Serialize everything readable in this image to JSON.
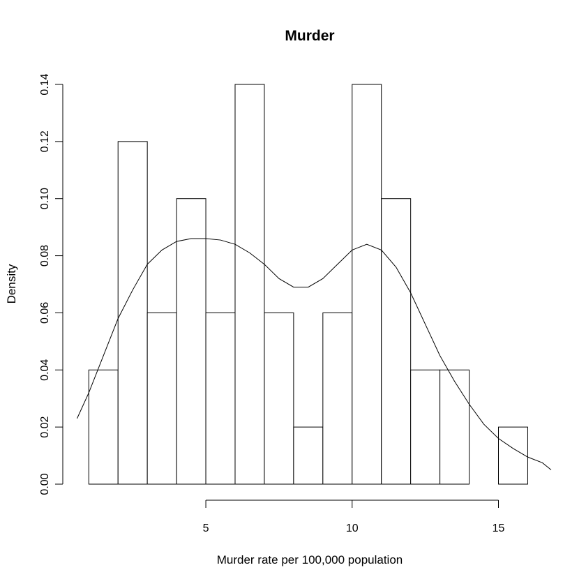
{
  "chart_data": {
    "type": "histogram",
    "title": "Murder",
    "xlabel": "Murder rate per 100,000 population",
    "ylabel": "Density",
    "bins": [
      {
        "x0": 1,
        "x1": 2,
        "density": 0.04
      },
      {
        "x0": 2,
        "x1": 3,
        "density": 0.12
      },
      {
        "x0": 3,
        "x1": 4,
        "density": 0.06
      },
      {
        "x0": 4,
        "x1": 5,
        "density": 0.1
      },
      {
        "x0": 5,
        "x1": 6,
        "density": 0.06
      },
      {
        "x0": 6,
        "x1": 7,
        "density": 0.14
      },
      {
        "x0": 7,
        "x1": 8,
        "density": 0.06
      },
      {
        "x0": 8,
        "x1": 9,
        "density": 0.02
      },
      {
        "x0": 9,
        "x1": 10,
        "density": 0.06
      },
      {
        "x0": 10,
        "x1": 11,
        "density": 0.14
      },
      {
        "x0": 11,
        "x1": 12,
        "density": 0.1
      },
      {
        "x0": 12,
        "x1": 13,
        "density": 0.04
      },
      {
        "x0": 13,
        "x1": 14,
        "density": 0.04
      },
      {
        "x0": 14,
        "x1": 15,
        "density": 0
      },
      {
        "x0": 15,
        "x1": 16,
        "density": 0.02
      }
    ],
    "density_curve": {
      "x": [
        0.6,
        1.0,
        1.5,
        2.0,
        2.5,
        3.0,
        3.5,
        4.0,
        4.5,
        5.0,
        5.5,
        6.0,
        6.5,
        7.0,
        7.5,
        8.0,
        8.5,
        9.0,
        9.5,
        10.0,
        10.5,
        11.0,
        11.5,
        12.0,
        12.5,
        13.0,
        13.5,
        14.0,
        14.5,
        15.0,
        15.5,
        16.0,
        16.5,
        16.8
      ],
      "y": [
        0.023,
        0.032,
        0.045,
        0.058,
        0.068,
        0.077,
        0.082,
        0.085,
        0.086,
        0.086,
        0.0855,
        0.084,
        0.081,
        0.077,
        0.072,
        0.069,
        0.069,
        0.072,
        0.077,
        0.082,
        0.084,
        0.082,
        0.076,
        0.067,
        0.056,
        0.045,
        0.036,
        0.028,
        0.021,
        0.016,
        0.0125,
        0.0095,
        0.0075,
        0.005
      ]
    },
    "xlim": [
      0.35,
      16.8
    ],
    "ylim": [
      0,
      0.14
    ],
    "x_ticks": [
      5,
      10,
      15
    ],
    "y_ticks": [
      "0.00",
      "0.02",
      "0.04",
      "0.06",
      "0.08",
      "0.10",
      "0.12",
      "0.14"
    ],
    "grid": false
  }
}
